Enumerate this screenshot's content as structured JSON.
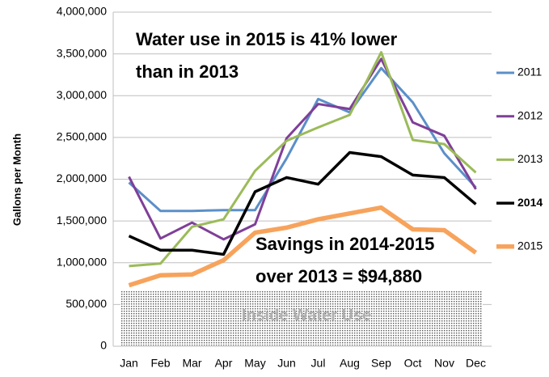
{
  "chart_data": {
    "type": "line",
    "ylabel": "Gallons per Month",
    "categories": [
      "Jan",
      "Feb",
      "Mar",
      "Apr",
      "May",
      "Jun",
      "Jul",
      "Aug",
      "Sep",
      "Oct",
      "Nov",
      "Dec"
    ],
    "series": [
      {
        "name": "2011",
        "color": "#5b8fc9",
        "values": [
          1960000,
          1620000,
          1620000,
          1630000,
          1630000,
          2250000,
          2960000,
          2800000,
          3330000,
          2920000,
          2310000,
          1900000
        ]
      },
      {
        "name": "2012",
        "color": "#7f3f98",
        "values": [
          2030000,
          1290000,
          1480000,
          1280000,
          1460000,
          2490000,
          2900000,
          2840000,
          3440000,
          2680000,
          2520000,
          1880000
        ]
      },
      {
        "name": "2013",
        "color": "#9bbb59",
        "values": [
          960000,
          990000,
          1430000,
          1520000,
          2100000,
          2460000,
          2620000,
          2770000,
          3520000,
          2470000,
          2420000,
          2080000
        ]
      },
      {
        "name": "2014",
        "color": "#000000",
        "values": [
          1320000,
          1150000,
          1150000,
          1100000,
          1850000,
          2020000,
          1940000,
          2320000,
          2270000,
          2050000,
          2020000,
          1700000
        ]
      },
      {
        "name": "2015",
        "color": "#f7a35c",
        "values": [
          730000,
          850000,
          860000,
          1030000,
          1360000,
          1420000,
          1520000,
          1590000,
          1660000,
          1400000,
          1390000,
          1120000
        ]
      }
    ],
    "ylim": [
      0,
      4000000
    ],
    "yticks": [
      0,
      {
        "value": 500000,
        "label": "500,000"
      },
      {
        "value": 1000000,
        "label": "1,000,000"
      },
      {
        "value": 1500000,
        "label": "1,500,000"
      },
      {
        "value": 2000000,
        "label": "2,000,000"
      },
      {
        "value": 2500000,
        "label": "2,500,000"
      },
      {
        "value": 3000000,
        "label": "3,000,000"
      },
      {
        "value": 3500000,
        "label": "3,500,000"
      },
      {
        "value": 4000000,
        "label": "4,000,000"
      }
    ],
    "grid": true,
    "legend": "right",
    "annotations": [
      {
        "lines": [
          "Water use in 2015 is 41% lower",
          "than in 2013"
        ]
      },
      {
        "lines": [
          "Savings in 2014-2015",
          "over 2013 = $94,880"
        ]
      }
    ],
    "region": {
      "label": "Inside Water Use",
      "value": 660000
    }
  }
}
